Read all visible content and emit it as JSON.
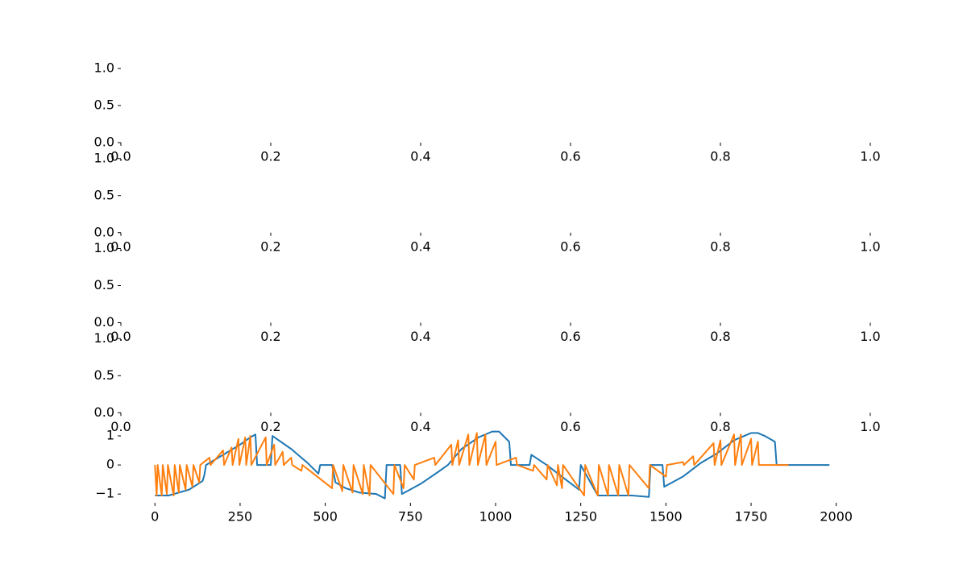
{
  "chart_data": [
    {
      "type": "line",
      "xlim": [
        0,
        1
      ],
      "ylim": [
        0,
        1
      ],
      "xticks": [
        {
          "value": 0,
          "label": "0.0"
        },
        0.2,
        0.4,
        0.6,
        0.8,
        {
          "value": 1,
          "label": "1.0"
        }
      ],
      "yticks": [
        {
          "value": 0,
          "label": "0.0"
        },
        0.5,
        {
          "value": 1,
          "label": "1.0"
        }
      ],
      "grid": false
    },
    {
      "type": "line",
      "xlim": [
        0,
        1
      ],
      "ylim": [
        0,
        1
      ],
      "xticks": [
        {
          "value": 0,
          "label": "0.0"
        },
        0.2,
        0.4,
        0.6,
        0.8,
        {
          "value": 1,
          "label": "1.0"
        }
      ],
      "yticks": [
        {
          "value": 0,
          "label": "0.0"
        },
        0.5,
        {
          "value": 1,
          "label": "1.0"
        }
      ],
      "grid": false
    },
    {
      "type": "line",
      "xlim": [
        0,
        1
      ],
      "ylim": [
        0,
        1
      ],
      "xticks": [
        {
          "value": 0,
          "label": "0.0"
        },
        0.2,
        0.4,
        0.6,
        0.8,
        {
          "value": 1,
          "label": "1.0"
        }
      ],
      "yticks": [
        {
          "value": 0,
          "label": "0.0"
        },
        0.5,
        {
          "value": 1,
          "label": "1.0"
        }
      ],
      "grid": false
    },
    {
      "type": "line",
      "xlim": [
        0,
        1
      ],
      "ylim": [
        0,
        1
      ],
      "xticks": [
        {
          "value": 0,
          "label": "0.0"
        },
        0.2,
        0.4,
        0.6,
        0.8,
        {
          "value": 1,
          "label": "1.0"
        }
      ],
      "yticks": [
        {
          "value": 0,
          "label": "0.0"
        },
        0.5,
        {
          "value": 1,
          "label": "1.0"
        }
      ],
      "grid": false
    },
    {
      "type": "line",
      "xlim": [
        -100,
        2100
      ],
      "ylim": [
        -1.3,
        1.25
      ],
      "xticks": [
        0,
        250,
        500,
        750,
        1000,
        1250,
        1500,
        1750,
        2000
      ],
      "yticks": [
        {
          "value": -1,
          "label": "−1"
        },
        0,
        1
      ],
      "grid": false,
      "series": [
        {
          "color": "#1f77b4",
          "x": [
            0,
            40,
            100,
            140,
            145,
            150,
            200,
            250,
            280,
            295,
            300,
            340,
            345,
            400,
            450,
            480,
            485,
            520,
            530,
            560,
            600,
            650,
            675,
            680,
            720,
            725,
            780,
            830,
            860,
            900,
            950,
            990,
            1010,
            1040,
            1045,
            1100,
            1105,
            1150,
            1200,
            1245,
            1250,
            1300,
            1350,
            1400,
            1450,
            1455,
            1490,
            1495,
            1550,
            1600,
            1650,
            1700,
            1750,
            1770,
            1790,
            1820,
            1825,
            1980
          ],
          "values": [
            -1.05,
            -1.05,
            -0.85,
            -0.55,
            -0.35,
            0,
            0.35,
            0.7,
            0.95,
            1.05,
            0,
            0,
            1.0,
            0.55,
            0.05,
            -0.3,
            0,
            0,
            -0.6,
            -0.8,
            -0.95,
            -1.0,
            -1.15,
            0,
            0,
            -1.0,
            -0.65,
            -0.25,
            0,
            0.55,
            0.95,
            1.15,
            1.15,
            0.8,
            0,
            0,
            0.35,
            0,
            -0.45,
            -0.85,
            0,
            -1.05,
            -1.05,
            -1.05,
            -1.1,
            0,
            0,
            -0.75,
            -0.4,
            0.05,
            0.4,
            0.85,
            1.1,
            1.1,
            1.0,
            0.8,
            0,
            0
          ]
        },
        {
          "color": "#ff7f0e",
          "x": [
            0,
            5,
            8,
            20,
            23,
            35,
            38,
            55,
            58,
            70,
            73,
            90,
            93,
            110,
            113,
            130,
            133,
            160,
            163,
            200,
            203,
            225,
            228,
            245,
            248,
            265,
            268,
            280,
            283,
            325,
            328,
            350,
            353,
            375,
            378,
            400,
            403,
            430,
            433,
            520,
            523,
            550,
            553,
            580,
            583,
            610,
            613,
            630,
            633,
            700,
            703,
            730,
            733,
            760,
            763,
            820,
            823,
            870,
            873,
            890,
            893,
            920,
            923,
            945,
            948,
            970,
            973,
            1000,
            1003,
            1060,
            1063,
            1110,
            1113,
            1150,
            1153,
            1180,
            1183,
            1195,
            1198,
            1260,
            1263,
            1300,
            1303,
            1330,
            1333,
            1360,
            1363,
            1390,
            1393,
            1450,
            1453,
            1500,
            1503,
            1550,
            1553,
            1580,
            1583,
            1640,
            1643,
            1660,
            1663,
            1700,
            1703,
            1720,
            1723,
            1750,
            1753,
            1770,
            1773,
            1860
          ],
          "values": [
            0,
            -1.05,
            0,
            -1.05,
            0,
            -1.0,
            0,
            -1.05,
            0,
            -0.95,
            0,
            -0.85,
            0,
            -0.75,
            0,
            -0.6,
            0,
            0.25,
            0,
            0.5,
            0,
            0.6,
            0,
            0.9,
            0,
            0.95,
            0,
            1.0,
            0,
            0.95,
            0,
            0.7,
            0,
            0.45,
            0,
            0.25,
            0,
            -0.2,
            0,
            -0.8,
            0,
            -0.9,
            0,
            -0.95,
            0,
            -1.0,
            0,
            -1.05,
            0,
            -1.0,
            0,
            -0.8,
            0,
            -0.5,
            0,
            0.25,
            0,
            0.7,
            0,
            0.85,
            0,
            1.05,
            0,
            1.1,
            0,
            1.05,
            0,
            0.8,
            0,
            0.25,
            0,
            -0.2,
            0,
            -0.5,
            0,
            -0.7,
            0,
            -0.8,
            0,
            -1.05,
            0,
            -1.05,
            0,
            -1.05,
            0,
            -1.05,
            0,
            -1.05,
            0,
            -0.8,
            0,
            -0.4,
            0,
            0.1,
            0,
            0.3,
            0,
            0.75,
            0,
            0.85,
            0,
            1.05,
            0,
            1.05,
            0,
            0.9,
            0,
            0.8,
            0,
            0
          ]
        }
      ]
    }
  ]
}
